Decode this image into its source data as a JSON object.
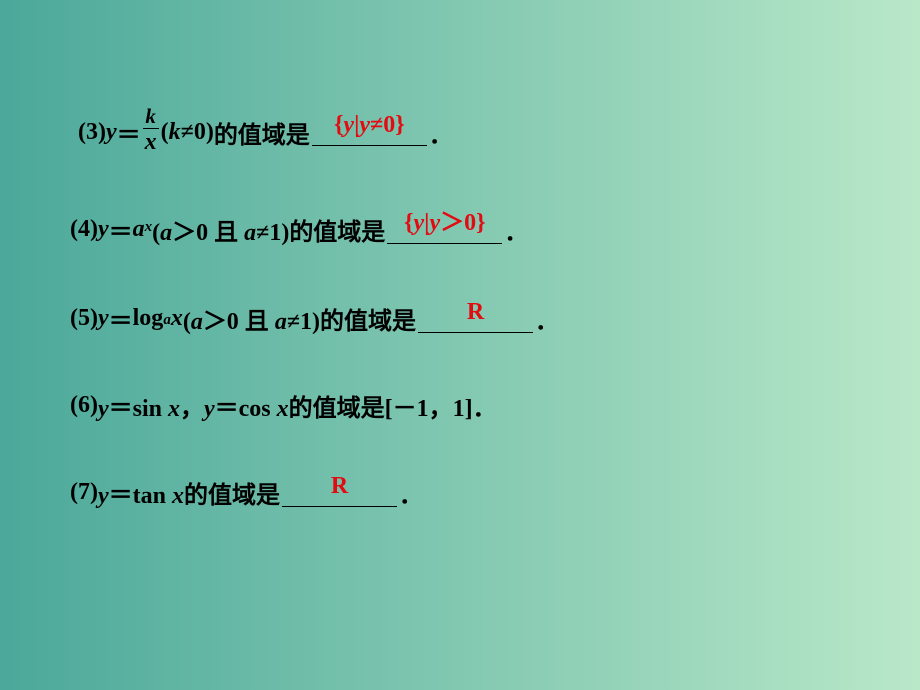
{
  "background": {
    "gradient_from": "#4ba89a",
    "gradient_to": "#b9e8c8"
  },
  "text_color": "#000000",
  "answer_color": "#e30b12",
  "font_size_pt": 18,
  "items": {
    "3": {
      "prefix": "(3)",
      "var": "y",
      "eq": "＝",
      "frac_num": "k",
      "frac_den": "x",
      "cond_open": "(",
      "cond_var": "k",
      "cond_rel": "≠",
      "cond_val": "0)",
      "tail1": "的值域是",
      "answer": "{y|y≠0}",
      "period": "．"
    },
    "4": {
      "prefix": "(4)",
      "expr_l": "y",
      "eq": "＝",
      "base": "a",
      "exp": "x",
      "cond": "(a＞0 且 a≠1)",
      "tail1": "的值域是",
      "answer_pre": "{",
      "answer_y": "y",
      "answer_bar": "|",
      "answer_y2": "y",
      "answer_gt": "＞",
      "answer_post": "0}",
      "period": "．"
    },
    "5": {
      "prefix": "(5)",
      "expr_l": "y",
      "eq": "＝",
      "log": "log",
      "log_sub": "a",
      "log_arg": "x",
      "cond": "(a＞0 且 a≠1)",
      "tail1": "的值域是",
      "answer": "R",
      "period": "．"
    },
    "6": {
      "prefix": "(6)",
      "p1": "y＝sin x",
      "comma": "，",
      "p2": "y＝cos x",
      "tail": " 的值域是[－1，1]．"
    },
    "7": {
      "prefix": "(7)",
      "p1": "y＝tan x",
      "tail1": " 的值域是",
      "answer": "R",
      "period": "．"
    }
  }
}
